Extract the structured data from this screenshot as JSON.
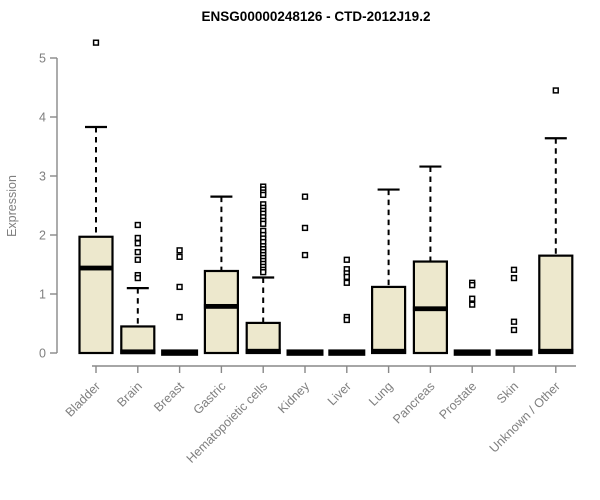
{
  "chart_data": {
    "type": "boxplot",
    "title": "ENSG00000248126 - CTD-2012J19.2",
    "xlabel": "",
    "ylabel": "Expression",
    "ylim": [
      0,
      5
    ],
    "yticks": [
      0,
      1,
      2,
      3,
      4,
      5
    ],
    "grid": false,
    "legend": "none",
    "categories": [
      "Bladder",
      "Brain",
      "Breast",
      "Gastric",
      "Hematopoietic cells",
      "Kidney",
      "Liver",
      "Lung",
      "Pancreas",
      "Prostate",
      "Skin",
      "Unknown / Other"
    ],
    "boxes": [
      {
        "category": "Bladder",
        "q1": 0,
        "median": 1.44,
        "q3": 1.97,
        "whisker_low": 0,
        "whisker_high": 3.83,
        "outliers": [
          5.26
        ]
      },
      {
        "category": "Brain",
        "q1": 0,
        "median": 0.02,
        "q3": 0.45,
        "whisker_low": 0,
        "whisker_high": 1.1,
        "outliers": [
          2.17,
          1.95,
          1.86,
          1.71,
          1.58,
          1.32,
          1.27
        ]
      },
      {
        "category": "Breast",
        "q1": 0,
        "median": 0.01,
        "q3": 0.02,
        "whisker_low": 0,
        "whisker_high": 0.02,
        "outliers": [
          1.74,
          1.63,
          1.12,
          0.61
        ]
      },
      {
        "category": "Gastric",
        "q1": 0,
        "median": 0.79,
        "q3": 1.39,
        "whisker_low": 0,
        "whisker_high": 2.65,
        "outliers": []
      },
      {
        "category": "Hematopoietic cells",
        "q1": 0,
        "median": 0.03,
        "q3": 0.51,
        "whisker_low": 0,
        "whisker_high": 1.28,
        "outliers": [
          2.82,
          2.77,
          2.72,
          2.68,
          2.52,
          2.46,
          2.41,
          2.36,
          2.3,
          2.24,
          2.19,
          2.07,
          2.0,
          1.94,
          1.88,
          1.81,
          1.76,
          1.71,
          1.66,
          1.61,
          1.56,
          1.51,
          1.46,
          1.41,
          1.37
        ]
      },
      {
        "category": "Kidney",
        "q1": 0,
        "median": 0.01,
        "q3": 0.02,
        "whisker_low": 0,
        "whisker_high": 0.02,
        "outliers": [
          2.65,
          2.12,
          1.66
        ]
      },
      {
        "category": "Liver",
        "q1": 0,
        "median": 0.01,
        "q3": 0.02,
        "whisker_low": 0,
        "whisker_high": 0.02,
        "outliers": [
          1.58,
          1.42,
          1.35,
          1.29,
          1.19,
          0.61,
          0.56
        ]
      },
      {
        "category": "Lung",
        "q1": 0,
        "median": 0.03,
        "q3": 1.12,
        "whisker_low": 0,
        "whisker_high": 2.77,
        "outliers": []
      },
      {
        "category": "Pancreas",
        "q1": 0,
        "median": 0.75,
        "q3": 1.55,
        "whisker_low": 0,
        "whisker_high": 3.16,
        "outliers": []
      },
      {
        "category": "Prostate",
        "q1": 0,
        "median": 0.01,
        "q3": 0.02,
        "whisker_low": 0,
        "whisker_high": 0.02,
        "outliers": [
          1.19,
          1.15,
          0.92,
          0.82
        ]
      },
      {
        "category": "Skin",
        "q1": 0,
        "median": 0.01,
        "q3": 0.02,
        "whisker_low": 0,
        "whisker_high": 0.02,
        "outliers": [
          1.41,
          1.27,
          0.53,
          0.39
        ]
      },
      {
        "category": "Unknown / Other",
        "q1": 0,
        "median": 0.03,
        "q3": 1.65,
        "whisker_low": 0,
        "whisker_high": 3.64,
        "outliers": [
          4.45
        ]
      }
    ],
    "colors": {
      "box_fill": "#ede8cd",
      "box_border": "#000000",
      "median": "#000000",
      "whisker": "#000000",
      "outlier_fill": "#ffffff",
      "outlier_border": "#000000",
      "axis": "#888888",
      "tick_label": "#7f7f7f",
      "title": "#000000",
      "background": "#ffffff"
    }
  }
}
